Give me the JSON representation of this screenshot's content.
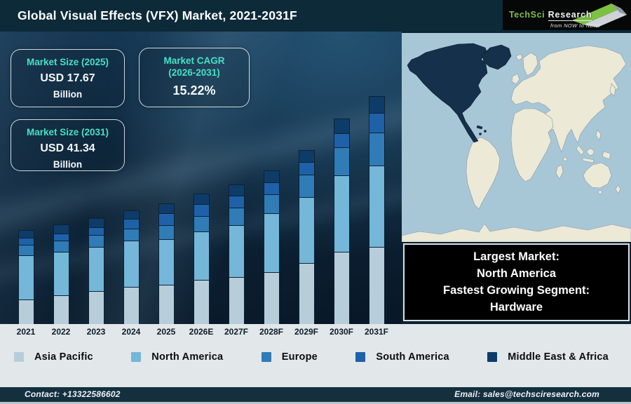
{
  "header": {
    "title": "Global Visual Effects (VFX) Market, 2021-2031F"
  },
  "logo": {
    "brand_primary": "TechSci",
    "brand_secondary": "Research",
    "tagline": "from NOW to NEXT"
  },
  "info_boxes": {
    "size_2025": {
      "label": "Market Size (2025)",
      "value": "USD 17.67",
      "unit": "Billion"
    },
    "cagr": {
      "label": "Market CAGR",
      "label2": "(2026-2031)",
      "value": "15.22%"
    },
    "size_2031": {
      "label": "Market Size (2031)",
      "value": "USD 41.34",
      "unit": "Billion"
    }
  },
  "map_caption": {
    "lines": [
      "Largest Market:",
      "North America",
      "Fastest Growing Segment:",
      "Hardware"
    ]
  },
  "chart_data": {
    "type": "bar",
    "stacked": true,
    "title": "Global Visual Effects (VFX) Market, 2021-2031F",
    "categories": [
      "2021",
      "2022",
      "2023",
      "2024",
      "2025",
      "2026E",
      "2027F",
      "2028F",
      "2029F",
      "2030F",
      "2031F"
    ],
    "series": [
      {
        "name": "Asia Pacific",
        "color": "#b7cdda",
        "values": [
          35,
          41,
          47,
          53,
          56,
          63,
          67,
          74,
          87,
          103,
          110
        ]
      },
      {
        "name": "North America",
        "color": "#74b7d9",
        "values": [
          63,
          62,
          63,
          66,
          65,
          69,
          74,
          84,
          94,
          109,
          116
        ]
      },
      {
        "name": "Europe",
        "color": "#2f7cb7",
        "values": [
          15,
          16,
          17,
          17,
          20,
          22,
          25,
          27,
          32,
          40,
          47
        ]
      },
      {
        "name": "South America",
        "color": "#1f61a8",
        "values": [
          10,
          10,
          11,
          14,
          17,
          17,
          17,
          17,
          18,
          20,
          28
        ]
      },
      {
        "name": "Middle East & Africa",
        "color": "#0e3c69",
        "values": [
          11,
          13,
          13,
          12,
          14,
          15,
          16,
          17,
          17,
          21,
          24
        ]
      }
    ],
    "values_unit": "relative segment height in px (chart shows no numeric axis)",
    "annotations": {
      "market_size_2025_usd_billion": 17.67,
      "market_size_2031_usd_billion": 41.34,
      "cagr_2026_2031_percent": 15.22
    },
    "legend_position": "bottom",
    "grid": false,
    "xlabel": "",
    "ylabel": ""
  },
  "footer": {
    "contact": "Contact: +13322586602",
    "email": "Email: sales@techsciresearch.com"
  },
  "colors": {
    "accent_teal": "#45e2c6",
    "header_bg": "#0d2a39",
    "strip_bg": "#e2e7ea",
    "footer_bg": "#14303f",
    "map_ocean": "#a7c7d7",
    "map_land": "#ece9d6",
    "map_highlight": "#15304a",
    "logo_green": "#7dc142"
  }
}
